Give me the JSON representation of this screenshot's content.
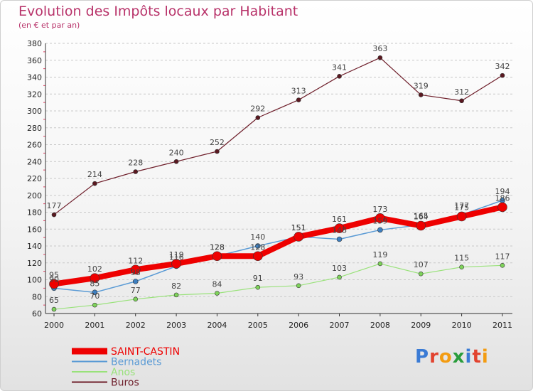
{
  "header": {
    "title": "Evolution des Impôts locaux par Habitant",
    "subtitle": "(en € et par an)"
  },
  "logo": {
    "text": "Proxiti",
    "letters": [
      {
        "ch": "P",
        "color": "#3a7bd5"
      },
      {
        "ch": "r",
        "color": "#e2432f"
      },
      {
        "ch": "o",
        "color": "#f39c12"
      },
      {
        "ch": "x",
        "color": "#2a9d3c"
      },
      {
        "ch": "i",
        "color": "#3a7bd5"
      },
      {
        "ch": "t",
        "color": "#e2432f"
      },
      {
        "ch": "i",
        "color": "#f39c12"
      }
    ]
  },
  "chart_data": {
    "type": "line",
    "title": "Evolution des Impôts locaux par Habitant",
    "subtitle": "(en € et par an)",
    "xlabel": "",
    "ylabel": "",
    "x": [
      "2000",
      "2001",
      "2002",
      "2003",
      "2004",
      "2005",
      "2006",
      "2007",
      "2008",
      "2009",
      "2010",
      "2011"
    ],
    "ylim": [
      60,
      380
    ],
    "yticks": [
      60,
      80,
      100,
      120,
      140,
      160,
      180,
      200,
      220,
      240,
      260,
      280,
      300,
      320,
      340,
      360,
      380
    ],
    "grid": "horizontal dashed",
    "legend": "bottom-left",
    "series": [
      {
        "name": "Buros",
        "color": "#6e1e2a",
        "values": [
          177,
          214,
          228,
          240,
          252,
          292,
          313,
          341,
          363,
          319,
          312,
          342
        ]
      },
      {
        "name": "Anos",
        "color": "#99e27a",
        "values": [
          65,
          70,
          77,
          82,
          84,
          91,
          93,
          103,
          119,
          107,
          115,
          117
        ]
      },
      {
        "name": "Bernadets",
        "color": "#5b9bd5",
        "values": [
          90,
          85,
          98,
          116,
          128,
          140,
          151,
          148,
          159,
          165,
          177,
          194
        ]
      },
      {
        "name": "SAINT-CASTIN",
        "color": "#ee0000",
        "values": [
          95,
          102,
          112,
          119,
          128,
          128,
          151,
          161,
          173,
          164,
          175,
          186
        ]
      }
    ]
  }
}
